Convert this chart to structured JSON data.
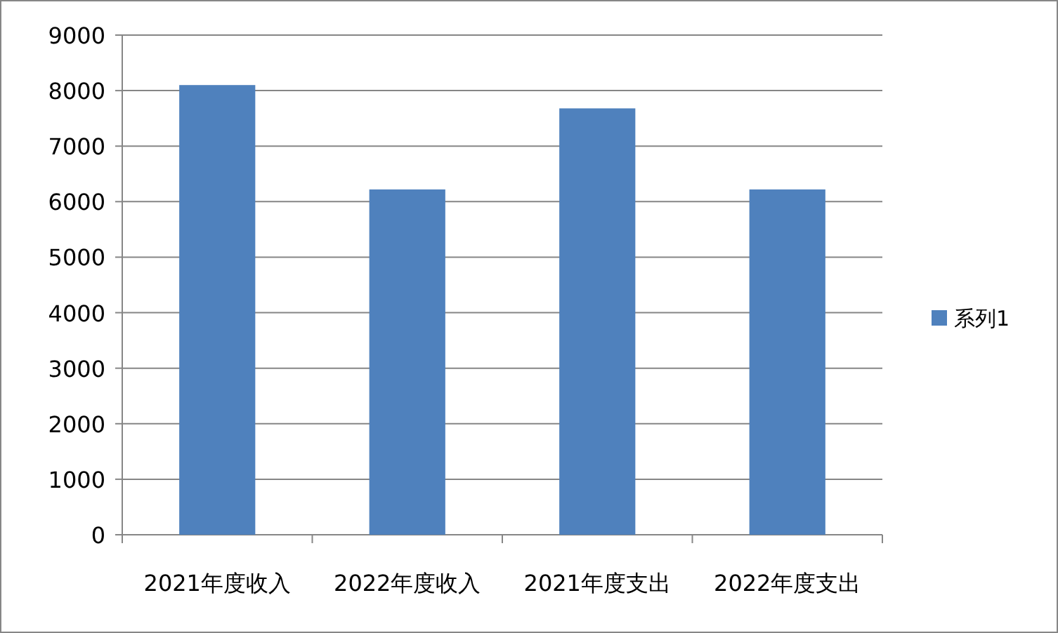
{
  "chart_data": {
    "type": "bar",
    "categories": [
      "2021年度收入",
      "2022年度收入",
      "2021年度支出",
      "2022年度支出"
    ],
    "series": [
      {
        "name": "系列1",
        "color": "#4f81bd",
        "values": [
          8100,
          6220,
          7680,
          6220
        ]
      }
    ],
    "ylim": [
      0,
      9000
    ],
    "yticks": [
      0,
      1000,
      2000,
      3000,
      4000,
      5000,
      6000,
      7000,
      8000,
      9000
    ],
    "grid": "y",
    "legend": "right"
  }
}
